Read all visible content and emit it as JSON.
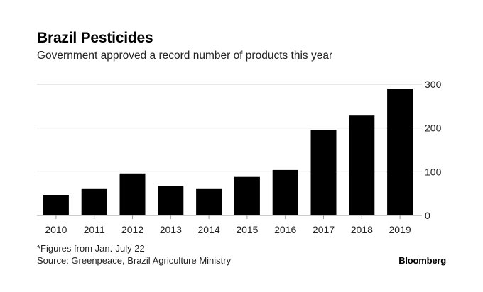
{
  "chart_data": {
    "type": "bar",
    "title": "Brazil Pesticides",
    "subtitle": "Government approved a record number of products this year",
    "categories": [
      "2010",
      "2011",
      "2012",
      "2013",
      "2014",
      "2015",
      "2016",
      "2017",
      "2018",
      "2019"
    ],
    "values": [
      47,
      62,
      96,
      68,
      62,
      88,
      104,
      195,
      230,
      290
    ],
    "xlabel": "",
    "ylabel": "",
    "ylim": [
      0,
      300
    ],
    "yticks": [
      0,
      100,
      200,
      300
    ],
    "ytick_labels": [
      "0",
      "100",
      "200",
      "300"
    ],
    "y_axis_side": "right",
    "grid": true,
    "bar_color": "#000000",
    "grid_color": "#cfcfcf"
  },
  "footnote": "*Figures from Jan.-July 22",
  "source": "Source: Greenpeace, Brazil Agriculture Ministry",
  "brand": "Bloomberg"
}
